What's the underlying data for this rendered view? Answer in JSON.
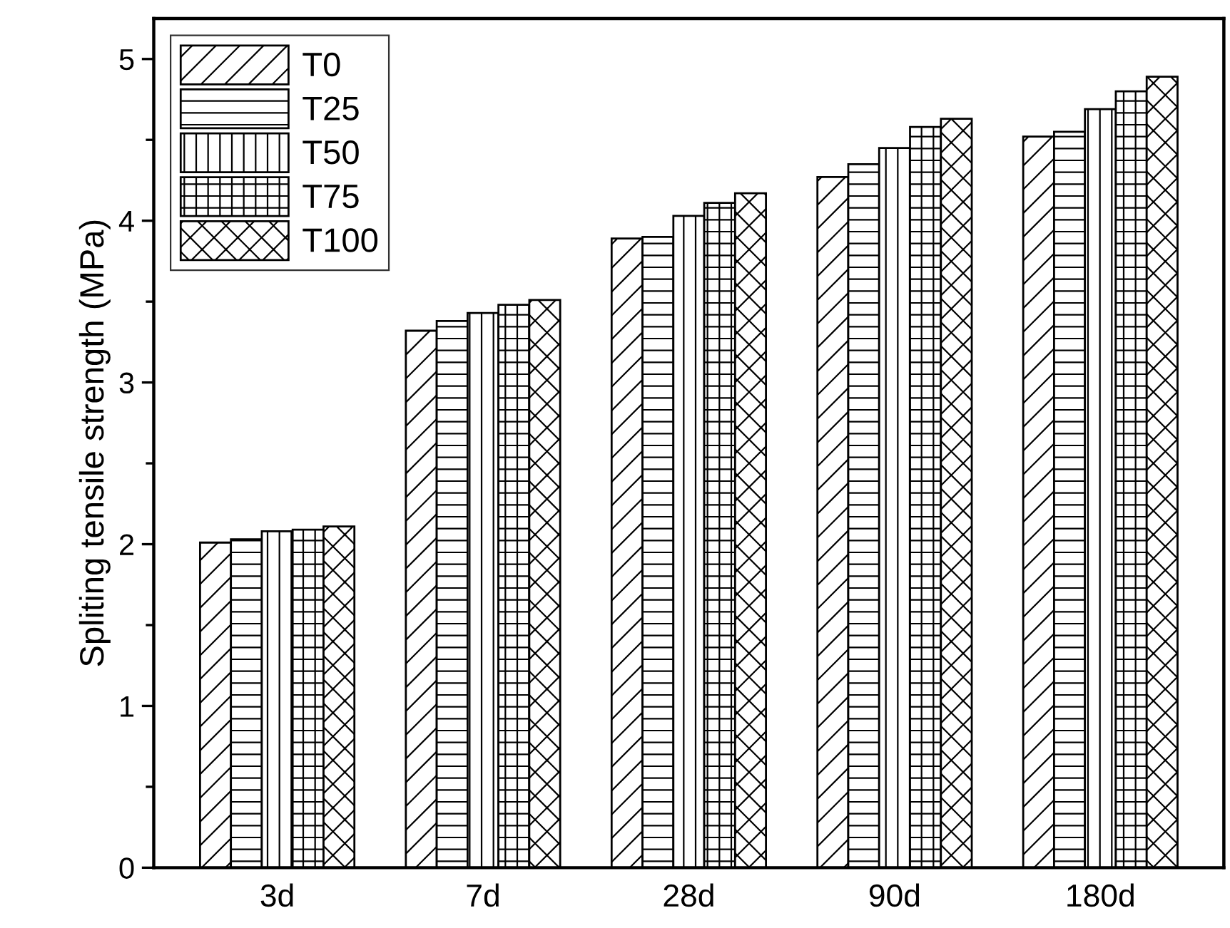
{
  "chart_data": {
    "type": "bar",
    "ylabel": "Spliting tensile strength (MPa)",
    "categories": [
      "3d",
      "7d",
      "28d",
      "90d",
      "180d"
    ],
    "series": [
      {
        "name": "T0",
        "color": "#000000",
        "values": [
          2.01,
          3.32,
          3.89,
          4.27,
          4.52
        ]
      },
      {
        "name": "T25",
        "color": "#000000",
        "values": [
          2.03,
          3.38,
          3.9,
          4.35,
          4.55
        ]
      },
      {
        "name": "T50",
        "color": "#000000",
        "values": [
          2.08,
          3.43,
          4.03,
          4.45,
          4.69
        ]
      },
      {
        "name": "T75",
        "color": "#000000",
        "values": [
          2.09,
          3.48,
          4.11,
          4.58,
          4.8
        ]
      },
      {
        "name": "T100",
        "color": "#000000",
        "values": [
          2.11,
          3.51,
          4.17,
          4.63,
          4.89
        ]
      }
    ],
    "ylim": [
      0,
      5.25
    ],
    "yticks": [
      0,
      1,
      2,
      3,
      4,
      5
    ],
    "grid": false,
    "legend": "top left"
  }
}
